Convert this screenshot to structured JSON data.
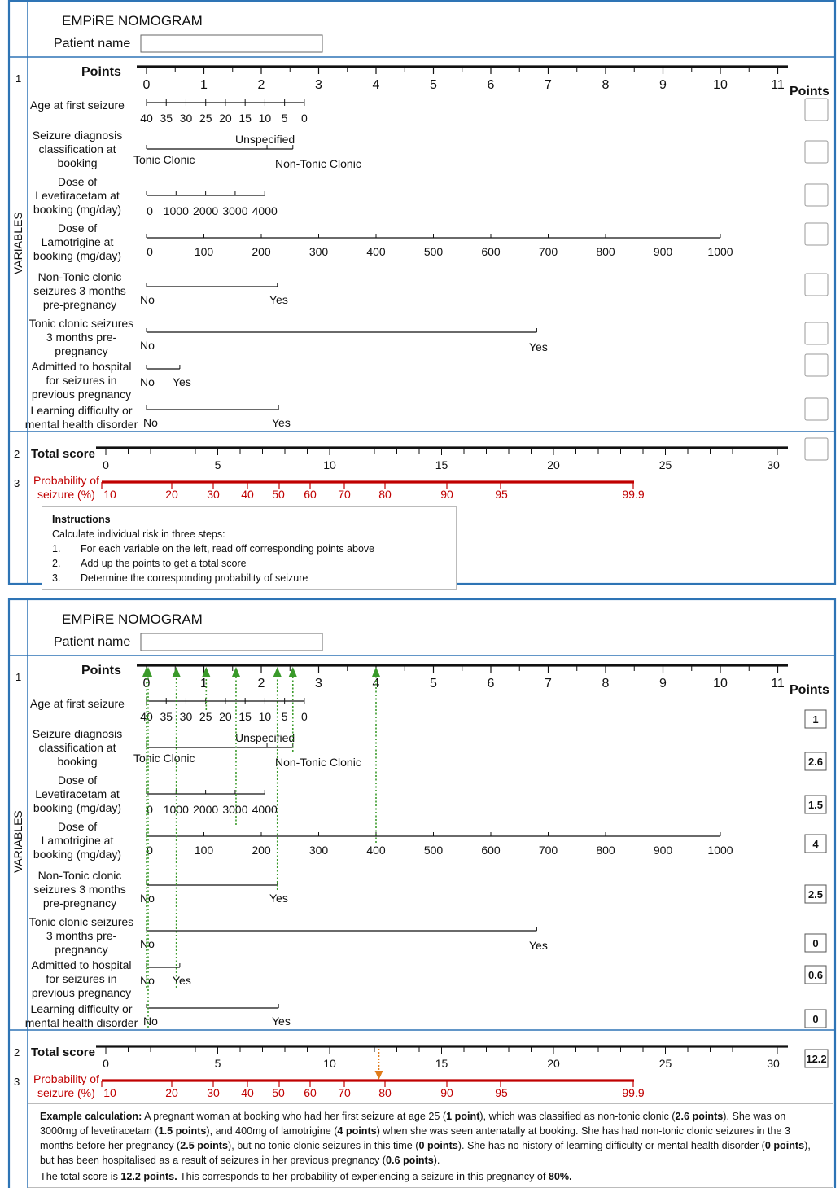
{
  "title": "EMPiRE NOMOGRAM",
  "patient_label": "Patient name",
  "points_label": "Points",
  "points_col_label": "Points",
  "variables_label": "VARIABLES",
  "row_nums": [
    "1",
    "2",
    "3"
  ],
  "points_axis": [
    "0",
    "1",
    "2",
    "3",
    "4",
    "5",
    "6",
    "7",
    "8",
    "9",
    "10",
    "11"
  ],
  "variables": [
    {
      "label": [
        "Age at first seizure"
      ],
      "ticks": [
        "40",
        "35",
        "30",
        "25",
        "20",
        "15",
        "10",
        "5",
        "0"
      ],
      "example_points": "1"
    },
    {
      "label": [
        "Seizure diagnosis",
        "classification at",
        "booking"
      ],
      "levels": [
        "Tonic Clonic",
        "Unspecified",
        "Non-Tonic Clonic"
      ],
      "example_points": "2.6"
    },
    {
      "label": [
        "Dose of",
        "Levetiracetam at",
        "booking (mg/day)"
      ],
      "ticks": [
        "0",
        "1000",
        "2000",
        "3000",
        "4000"
      ],
      "example_points": "1.5"
    },
    {
      "label": [
        "Dose of",
        "Lamotrigine at",
        "booking (mg/day)"
      ],
      "ticks": [
        "0",
        "100",
        "200",
        "300",
        "400",
        "500",
        "600",
        "700",
        "800",
        "900",
        "1000"
      ],
      "example_points": "4"
    },
    {
      "label": [
        "Non-Tonic clonic",
        "seizures 3 months",
        "pre-pregnancy"
      ],
      "levels": [
        "No",
        "Yes"
      ],
      "example_points": "2.5"
    },
    {
      "label": [
        "Tonic clonic seizures",
        "3 months pre-",
        "pregnancy"
      ],
      "levels": [
        "No",
        "Yes"
      ],
      "example_points": "0"
    },
    {
      "label": [
        "Admitted to hospital",
        "for seizures in",
        "previous pregnancy"
      ],
      "levels": [
        "No",
        "Yes"
      ],
      "example_points": "0.6"
    },
    {
      "label": [
        "Learning difficulty or",
        "mental health disorder"
      ],
      "levels": [
        "No",
        "Yes"
      ],
      "example_points": "0"
    }
  ],
  "total_label": "Total score",
  "total_axis": [
    "0",
    "5",
    "10",
    "15",
    "20",
    "25",
    "30"
  ],
  "total_example": "12.2",
  "prob_label": [
    "Probability of",
    "seizure (%)"
  ],
  "prob_axis": [
    "10",
    "20",
    "30",
    "40",
    "50",
    "60",
    "70",
    "80",
    "90",
    "95",
    "99.9"
  ],
  "instructions": {
    "title": "Instructions",
    "intro": "Calculate individual risk in three steps:",
    "steps": [
      {
        "n": "1.",
        "text": "For each variable on the left, read off corresponding points above"
      },
      {
        "n": "2.",
        "text": "Add up the points to get a total score"
      },
      {
        "n": "3.",
        "text": "Determine the corresponding probability of seizure"
      }
    ]
  },
  "example": {
    "p1": [
      {
        "t": "Example calculation:",
        "b": true
      },
      {
        "t": " A pregnant woman at booking who had her first seizure at age 25 ("
      },
      {
        "t": "1 point",
        "b": true
      },
      {
        "t": "), which was classified as non-tonic clonic ("
      },
      {
        "t": "2.6 points",
        "b": true
      },
      {
        "t": "). She was on 3000mg of levetiracetam ("
      },
      {
        "t": "1.5 points",
        "b": true
      },
      {
        "t": "), and 400mg of lamotrigine ("
      },
      {
        "t": "4 points",
        "b": true
      },
      {
        "t": ") when she was seen antenatally at booking. She has had non-tonic clonic seizures in the 3 months before her pregnancy ("
      },
      {
        "t": "2.5 points",
        "b": true
      },
      {
        "t": "), but no tonic-clonic seizures in this time ("
      },
      {
        "t": "0 points",
        "b": true
      },
      {
        "t": "). She has no history of learning difficulty or mental health disorder ("
      },
      {
        "t": "0 points",
        "b": true
      },
      {
        "t": "), but has been hospitalised as a result of seizures in her previous pregnancy ("
      },
      {
        "t": "0.6 points",
        "b": true
      },
      {
        "t": ")."
      }
    ],
    "p2": [
      {
        "t": "The total score is "
      },
      {
        "t": "12.2 points.",
        "b": true
      },
      {
        "t": " This corresponds to her probability of experiencing a seizure in this pregnancy of "
      },
      {
        "t": "80%.",
        "b": true
      }
    ]
  },
  "colors": {
    "frame": "#2e74b5",
    "prob": "#c00000",
    "guide": "#3a9a2a",
    "arrow_total": "#e07b1a"
  }
}
